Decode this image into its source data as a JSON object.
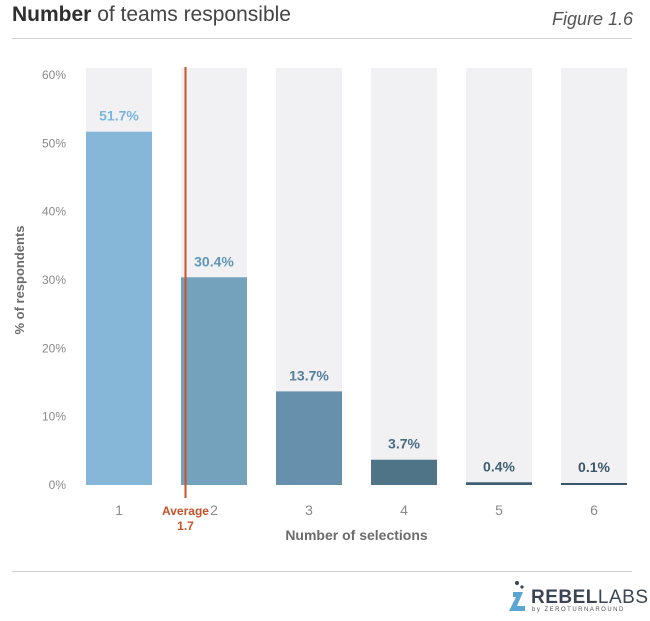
{
  "header": {
    "title_bold": "Number",
    "title_rest": " of teams responsible",
    "figure_label": "Figure 1.6"
  },
  "chart_data": {
    "type": "bar",
    "categories": [
      "1",
      "2",
      "3",
      "4",
      "5",
      "6"
    ],
    "values": [
      51.7,
      30.4,
      13.7,
      3.7,
      0.4,
      0.1
    ],
    "value_labels": [
      "51.7%",
      "30.4%",
      "13.7%",
      "3.7%",
      "0.4%",
      "0.1%"
    ],
    "ylabel": "% of respondents",
    "xlabel": "Number of selections",
    "ylim": [
      0,
      60
    ],
    "yticks": [
      0,
      10,
      20,
      30,
      40,
      50,
      60
    ],
    "ytick_labels": [
      "0%",
      "10%",
      "20%",
      "30%",
      "40%",
      "50%",
      "60%"
    ],
    "average": {
      "value": 1.7,
      "label_line1": "Average",
      "label_line2": "1.7",
      "color": "#c8532b"
    },
    "bar_colors": [
      "#86b6d8",
      "#74a2bd",
      "#6690ac",
      "#4f7488",
      "#3f5f72",
      "#3a5669"
    ],
    "label_colors": [
      "#7ab6dc",
      "#5f96b6",
      "#557e9c",
      "#4a6b80",
      "#3f5f72",
      "#3a5669"
    ],
    "background_track_color": "#f1f1f4",
    "grid": false,
    "legend": "none"
  },
  "footer": {
    "logo_main_bold": "REBEL",
    "logo_main_light": "LABS",
    "logo_sub": "by ZEROTURNAROUND"
  }
}
